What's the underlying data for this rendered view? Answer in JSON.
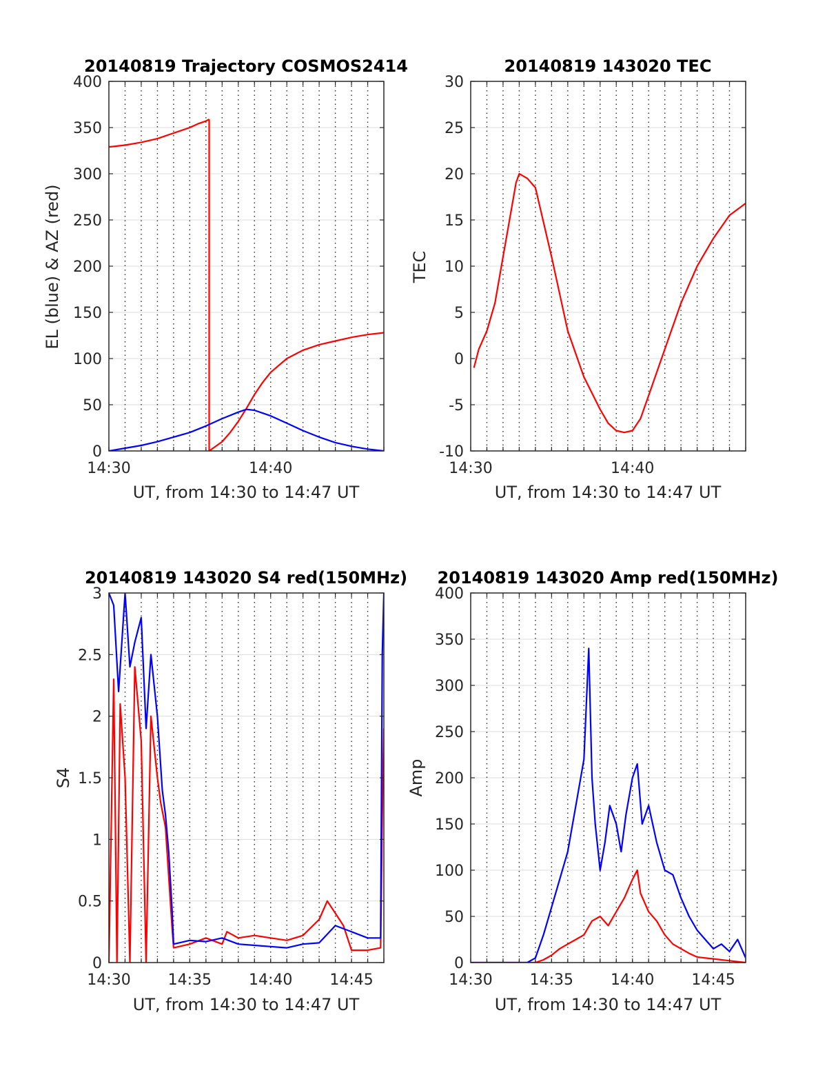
{
  "colors": {
    "red": "#ff0000",
    "blue": "#0000ff",
    "grid": "#262626",
    "axis": "#262626"
  },
  "chart_data": [
    {
      "type": "line",
      "title": "20140819 Trajectory COSMOS2414",
      "xlabel": "UT, from 14:30 to 14:47 UT",
      "ylabel": "EL (blue) & AZ (red)",
      "xlim": [
        0,
        17
      ],
      "ylim": [
        0,
        400
      ],
      "xticks": [
        {
          "value": 0,
          "label": "14:30"
        },
        {
          "value": 10,
          "label": "14:40"
        }
      ],
      "yticks": [
        0,
        50,
        100,
        150,
        200,
        250,
        300,
        350,
        400
      ],
      "grid": "x dotted every 1 min, y light solid",
      "series": [
        {
          "name": "AZ",
          "color": "red",
          "segments": [
            {
              "x": [
                0,
                1,
                2,
                3,
                4,
                5,
                5.5,
                6,
                6.2
              ],
              "y": [
                329,
                331,
                334,
                338,
                344,
                350,
                354,
                357,
                359
              ]
            },
            {
              "x": [
                6.2,
                6.2
              ],
              "y": [
                359,
                0
              ]
            },
            {
              "x": [
                6.2,
                7,
                7.5,
                8,
                8.5,
                9,
                9.5,
                10,
                11,
                12,
                13,
                14,
                15,
                16,
                17
              ],
              "y": [
                0,
                10,
                20,
                32,
                46,
                61,
                74,
                85,
                100,
                109,
                115,
                119,
                123,
                126,
                128
              ]
            }
          ]
        },
        {
          "name": "EL",
          "color": "blue",
          "segments": [
            {
              "x": [
                0,
                1,
                2,
                3,
                4,
                5,
                6,
                7,
                8,
                8.5,
                9,
                10,
                11,
                12,
                13,
                14,
                15,
                16,
                17
              ],
              "y": [
                0,
                3,
                6,
                10,
                15,
                20,
                27,
                35,
                42,
                45,
                44,
                38,
                30,
                22,
                15,
                9,
                5,
                2,
                0
              ]
            }
          ]
        }
      ]
    },
    {
      "type": "line",
      "title": "20140819 143020 TEC",
      "xlabel": "UT, from 14:30 to 14:47 UT",
      "ylabel": "TEC",
      "xlim": [
        0,
        17
      ],
      "ylim": [
        -10,
        30
      ],
      "xticks": [
        {
          "value": 0,
          "label": "14:30"
        },
        {
          "value": 10,
          "label": "14:40"
        }
      ],
      "yticks": [
        -10,
        -5,
        0,
        5,
        10,
        15,
        20,
        25,
        30
      ],
      "grid": "x dotted every 1 min, y light solid",
      "series": [
        {
          "name": "TEC",
          "color": "red",
          "segments": [
            {
              "x": [
                0.2,
                0.5,
                1,
                1.5,
                2,
                2.5,
                2.8,
                3,
                3.5,
                4,
                5,
                6,
                7,
                8,
                8.5,
                9,
                9.5,
                10,
                10.5,
                11,
                12,
                13,
                14,
                15,
                16,
                17
              ],
              "y": [
                -1,
                1,
                3,
                6,
                11,
                16,
                19,
                20,
                19.5,
                18.5,
                11,
                3,
                -2,
                -5.5,
                -7,
                -7.8,
                -8,
                -7.8,
                -6.5,
                -4,
                1,
                6,
                10,
                13,
                15.5,
                16.8
              ]
            }
          ]
        }
      ]
    },
    {
      "type": "line",
      "title": "20140819 143020 S4 red(150MHz)",
      "xlabel": "UT, from 14:30 to 14:47 UT",
      "ylabel": "S4",
      "xlim": [
        0,
        17
      ],
      "ylim": [
        0,
        3
      ],
      "xticks": [
        {
          "value": 0,
          "label": "14:30"
        },
        {
          "value": 5,
          "label": "14:35"
        },
        {
          "value": 10,
          "label": "14:40"
        },
        {
          "value": 15,
          "label": "14:45"
        }
      ],
      "yticks": [
        0,
        0.5,
        1,
        1.5,
        2,
        2.5,
        3
      ],
      "grid": "x dotted every 1 min, y light solid",
      "series": [
        {
          "name": "red",
          "color": "red",
          "segments": [
            {
              "x": [
                0,
                0.3,
                0.5,
                0.7,
                1,
                1.3,
                1.6,
                2,
                2.3,
                2.6,
                3,
                3.2,
                3.5,
                3.7,
                3.9,
                4,
                5,
                6,
                7,
                7.3,
                8,
                9,
                10,
                11,
                12,
                13,
                13.5,
                14,
                14.5,
                15,
                16,
                16.8,
                16.9,
                17
              ],
              "y": [
                0,
                2.3,
                0,
                2.1,
                1.5,
                0,
                2.4,
                1.8,
                0,
                2.0,
                1.5,
                1.3,
                1.1,
                0.7,
                0.3,
                0.12,
                0.15,
                0.2,
                0.15,
                0.25,
                0.2,
                0.22,
                0.2,
                0.18,
                0.22,
                0.35,
                0.5,
                0.4,
                0.3,
                0.1,
                0.1,
                0.12,
                1.2,
                1.9
              ]
            }
          ]
        },
        {
          "name": "blue",
          "color": "blue",
          "segments": [
            {
              "x": [
                0,
                0.3,
                0.6,
                1,
                1.3,
                1.6,
                2,
                2.3,
                2.6,
                3,
                3.3,
                3.5,
                3.7,
                3.9,
                4,
                5,
                6,
                7,
                8,
                9,
                10,
                11,
                12,
                13,
                14,
                15,
                16,
                16.8,
                16.9,
                17
              ],
              "y": [
                3,
                2.9,
                2.2,
                3,
                2.4,
                2.6,
                2.8,
                1.9,
                2.5,
                2.0,
                1.4,
                1.2,
                0.9,
                0.45,
                0.15,
                0.18,
                0.17,
                0.2,
                0.15,
                0.14,
                0.13,
                0.12,
                0.15,
                0.16,
                0.3,
                0.25,
                0.2,
                0.2,
                2.5,
                3
              ]
            }
          ]
        }
      ]
    },
    {
      "type": "line",
      "title": "20140819 143020 Amp red(150MHz)",
      "xlabel": "UT, from 14:30 to 14:47 UT",
      "ylabel": "Amp",
      "xlim": [
        0,
        17
      ],
      "ylim": [
        0,
        400
      ],
      "xticks": [
        {
          "value": 0,
          "label": "14:30"
        },
        {
          "value": 5,
          "label": "14:35"
        },
        {
          "value": 10,
          "label": "14:40"
        },
        {
          "value": 15,
          "label": "14:45"
        }
      ],
      "yticks": [
        0,
        50,
        100,
        150,
        200,
        250,
        300,
        350,
        400
      ],
      "grid": "x dotted every 1 min, y light solid",
      "series": [
        {
          "name": "red",
          "color": "red",
          "segments": [
            {
              "x": [
                0,
                4,
                4.5,
                5,
                5.5,
                6,
                6.5,
                7,
                7.5,
                8,
                8.5,
                9,
                9.5,
                10,
                10.3,
                10.5,
                11,
                11.5,
                12,
                12.5,
                13,
                13.5,
                14,
                15,
                16,
                17
              ],
              "y": [
                0,
                0,
                3,
                8,
                15,
                20,
                25,
                30,
                45,
                50,
                40,
                55,
                70,
                90,
                100,
                75,
                55,
                45,
                30,
                20,
                15,
                10,
                6,
                4,
                2,
                0
              ]
            }
          ]
        },
        {
          "name": "blue",
          "color": "blue",
          "segments": [
            {
              "x": [
                0,
                3.5,
                4,
                4.5,
                5,
                5.5,
                6,
                6.5,
                7,
                7.3,
                7.5,
                7.7,
                8,
                8.3,
                8.6,
                9,
                9.3,
                9.6,
                10,
                10.3,
                10.6,
                11,
                11.5,
                12,
                12.5,
                13,
                13.5,
                14,
                14.5,
                15,
                15.5,
                16,
                16.5,
                17
              ],
              "y": [
                0,
                0,
                5,
                30,
                60,
                90,
                120,
                170,
                220,
                340,
                200,
                150,
                100,
                130,
                170,
                150,
                120,
                160,
                200,
                215,
                150,
                170,
                130,
                100,
                95,
                70,
                50,
                35,
                25,
                15,
                20,
                12,
                25,
                5
              ]
            }
          ]
        }
      ]
    }
  ]
}
